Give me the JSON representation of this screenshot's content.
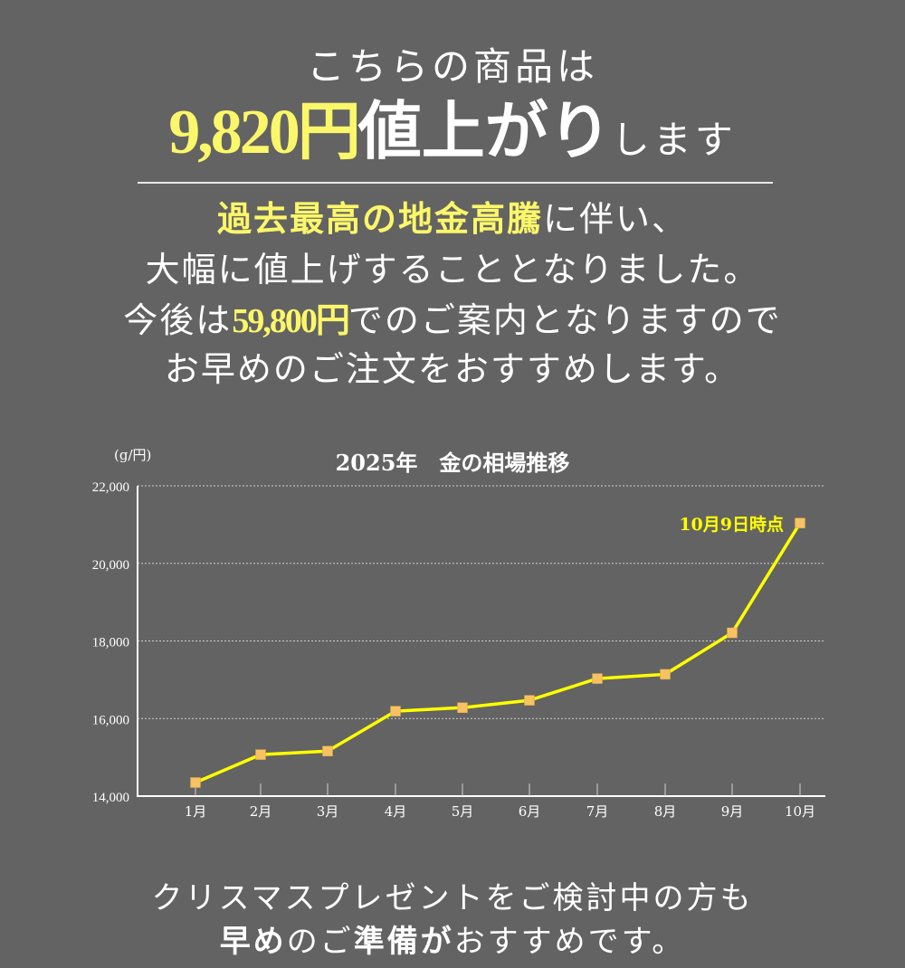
{
  "headline": {
    "line1": "こちらの商品は",
    "price_increase": "9,820円",
    "price_increase_suffix_bold": "値上がり",
    "price_increase_suffix": "します"
  },
  "message": {
    "line1_highlight": "過去最高の地金高騰",
    "line1_rest": "に伴い、",
    "line2": "大幅に値上げすることとなりました。",
    "line3_prefix": "今後は",
    "line3_price": "59,800円",
    "line3_suffix": "でのご案内となりますので",
    "line4": "お早めのご注文をおすすめします。"
  },
  "footer": {
    "line1": "クリスマスプレゼントをご検討中の方も",
    "line2_a": "早め",
    "line2_b": "のご",
    "line2_c": "準備が",
    "line2_d": "おすすめです。"
  },
  "colors": {
    "background": "#636363",
    "highlight": "#fbf76a",
    "line": "#ffff00",
    "marker": "#f7c261",
    "text": "#ffffff"
  },
  "chart_data": {
    "type": "line",
    "title": "2025年　金の相場推移",
    "ylabel": "(g/円)",
    "xlabel": "",
    "categories": [
      "1月",
      "2月",
      "3月",
      "4月",
      "5月",
      "6月",
      "7月",
      "8月",
      "9月",
      "10月"
    ],
    "series": [
      {
        "name": "金の相場 (g/円)",
        "values": [
          14350,
          15070,
          15160,
          16190,
          16280,
          16470,
          17030,
          17140,
          18210,
          21040
        ]
      }
    ],
    "yticks": [
      "14,000",
      "16,000",
      "18,000",
      "20,000",
      "22,000"
    ],
    "ylim": [
      14000,
      22000
    ],
    "grid": "horizontal dotted",
    "annotation": {
      "text": "10月9日時点",
      "target": "10月"
    }
  }
}
